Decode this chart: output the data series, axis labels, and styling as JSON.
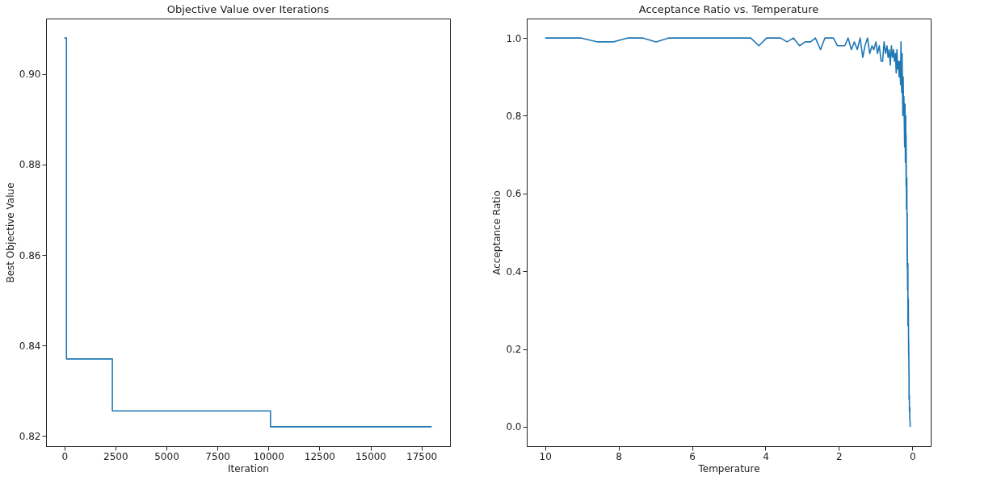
{
  "chart_data": [
    {
      "type": "step",
      "title": "Objective Value over Iterations",
      "xlabel": "Iteration",
      "ylabel": "Best Objective Value",
      "x": [
        0,
        100,
        2350,
        10100,
        18000
      ],
      "series": [
        {
          "color": "#1f77b4",
          "values": [
            0.908,
            0.837,
            0.8255,
            0.822,
            0.822
          ]
        }
      ],
      "xlim": [
        -900,
        18900
      ],
      "xticks": [
        0,
        2500,
        5000,
        7500,
        10000,
        12500,
        15000,
        17500
      ],
      "ylim": [
        0.8177,
        0.9123
      ],
      "yticks": [
        {
          "value": 0.82,
          "label": "0.82"
        },
        {
          "value": 0.84,
          "label": "0.84"
        },
        {
          "value": 0.86,
          "label": "0.86"
        },
        {
          "value": 0.88,
          "label": "0.88"
        },
        {
          "value": 0.9,
          "label": "0.90"
        }
      ],
      "grid": false
    },
    {
      "type": "line",
      "title": "Acceptance Ratio vs. Temperature",
      "xlabel": "Temperature",
      "ylabel": "Acceptance Ratio",
      "x": [
        10,
        9.5,
        9.03,
        8.57,
        8.15,
        7.74,
        7.35,
        6.98,
        6.63,
        6.3,
        5.99,
        5.69,
        5.4,
        5.13,
        4.88,
        4.63,
        4.4,
        4.18,
        3.97,
        3.77,
        3.59,
        3.41,
        3.24,
        3.07,
        2.92,
        2.77,
        2.64,
        2.5,
        2.38,
        2.26,
        2.15,
        2.04,
        1.94,
        1.84,
        1.75,
        1.66,
        1.58,
        1.5,
        1.42,
        1.35,
        1.29,
        1.22,
        1.16,
        1.1,
        1.05,
        0.99,
        0.95,
        0.9,
        0.85,
        0.81,
        0.77,
        0.73,
        0.69,
        0.66,
        0.63,
        0.6,
        0.57,
        0.54,
        0.51,
        0.49,
        0.46,
        0.44,
        0.42,
        0.4,
        0.38,
        0.36,
        0.34,
        0.32,
        0.31,
        0.29,
        0.28,
        0.26,
        0.25,
        0.24,
        0.23,
        0.21,
        0.2,
        0.19,
        0.18,
        0.17,
        0.17,
        0.16,
        0.15,
        0.14,
        0.14,
        0.13,
        0.12,
        0.12,
        0.11,
        0.1,
        0.1,
        0.09,
        0.09,
        0.09,
        0.08,
        0.08,
        0.07,
        0.07,
        0.07,
        0.06,
        0.06
      ],
      "series": [
        {
          "color": "#1f77b4",
          "values": [
            1.0,
            1.0,
            1.0,
            0.99,
            0.99,
            1.0,
            1.0,
            0.99,
            1.0,
            1.0,
            1.0,
            1.0,
            1.0,
            1.0,
            1.0,
            1.0,
            1.0,
            0.98,
            1.0,
            1.0,
            1.0,
            0.99,
            1.0,
            0.98,
            0.99,
            0.99,
            1.0,
            0.97,
            1.0,
            1.0,
            1.0,
            0.98,
            0.98,
            0.98,
            1.0,
            0.97,
            0.99,
            0.97,
            1.0,
            0.95,
            0.98,
            1.0,
            0.96,
            0.98,
            0.97,
            0.99,
            0.96,
            0.98,
            0.94,
            0.94,
            0.99,
            0.96,
            0.98,
            0.95,
            0.97,
            0.93,
            0.98,
            0.95,
            0.97,
            0.94,
            0.96,
            0.91,
            0.97,
            0.92,
            0.94,
            0.9,
            0.94,
            0.88,
            0.99,
            0.86,
            0.96,
            0.8,
            0.9,
            0.83,
            0.85,
            0.72,
            0.83,
            0.68,
            0.8,
            0.62,
            0.75,
            0.56,
            0.64,
            0.41,
            0.55,
            0.35,
            0.42,
            0.26,
            0.33,
            0.18,
            0.22,
            0.12,
            0.14,
            0.07,
            0.08,
            0.04,
            0.05,
            0.02,
            0.02,
            0.01,
            0.0
          ]
        }
      ],
      "xlim": [
        10.5,
        -0.5
      ],
      "xticks": [
        10,
        8,
        6,
        4,
        2,
        0
      ],
      "ylim": [
        -0.05,
        1.05
      ],
      "yticks": [
        {
          "value": 0,
          "label": "0.0"
        },
        {
          "value": 0.2,
          "label": "0.2"
        },
        {
          "value": 0.4,
          "label": "0.4"
        },
        {
          "value": 0.6,
          "label": "0.6"
        },
        {
          "value": 0.8,
          "label": "0.8"
        },
        {
          "value": 1,
          "label": "1.0"
        }
      ],
      "grid": false
    }
  ]
}
